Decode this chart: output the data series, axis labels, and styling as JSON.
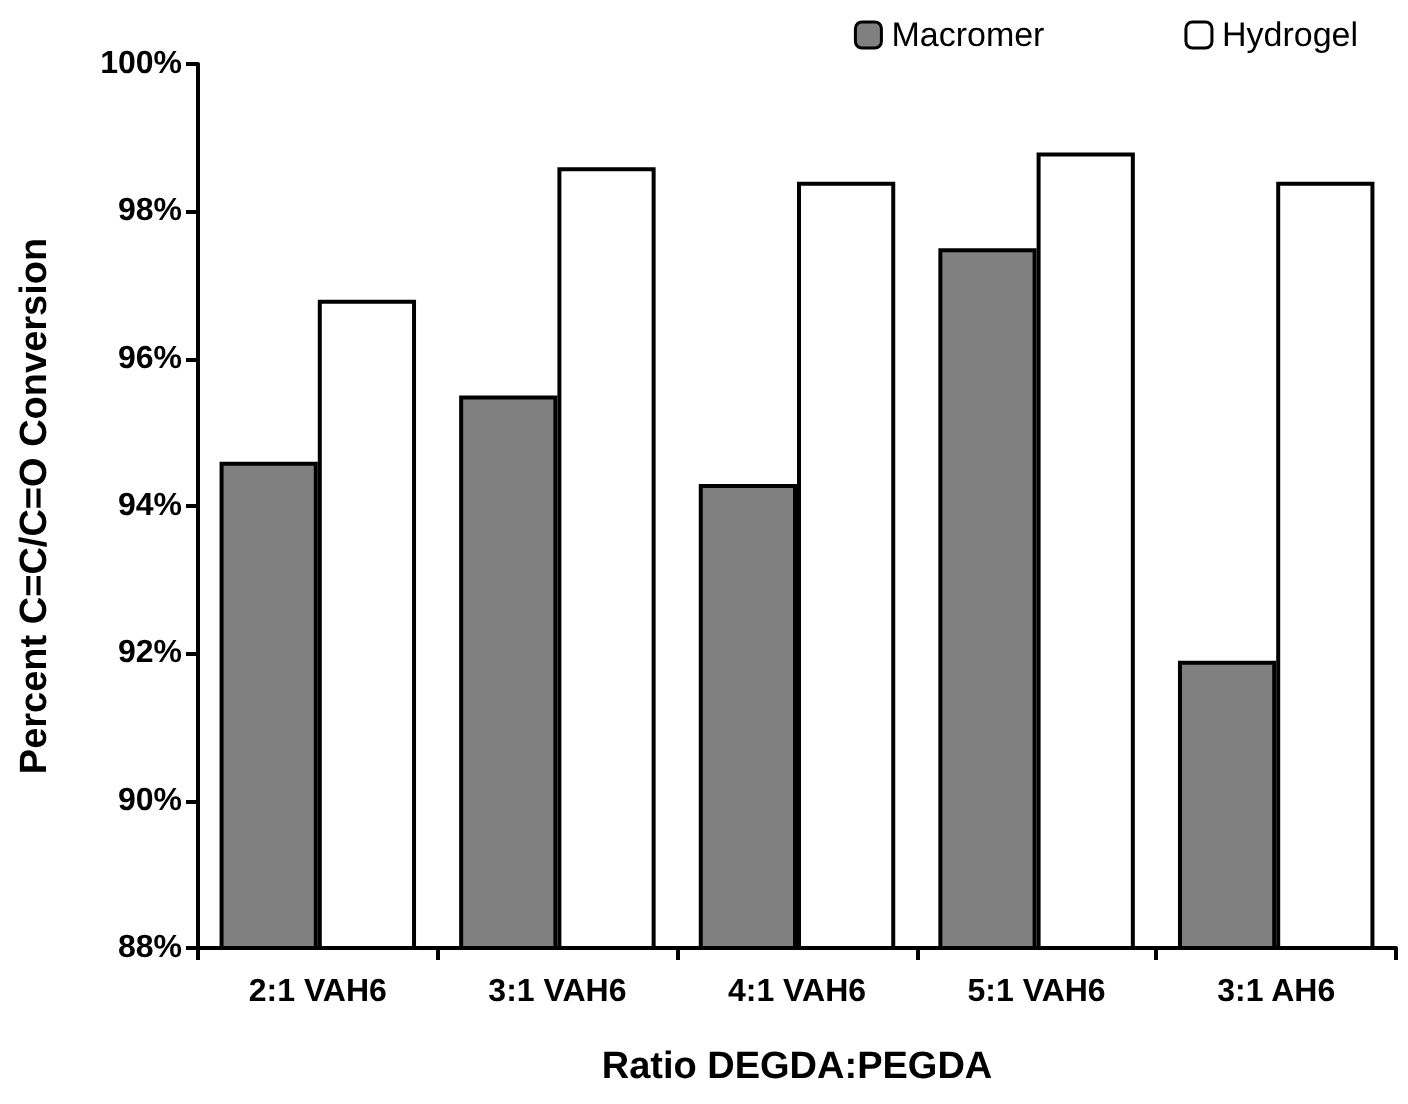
{
  "chart_data": {
    "type": "bar",
    "xlabel": "Ratio DEGDA:PEGDA",
    "ylabel": "Percent C=C/C=O Conversion",
    "categories": [
      "2:1 VAH6",
      "3:1 VAH6",
      "4:1 VAH6",
      "5:1 VAH6",
      "3:1 AH6"
    ],
    "series": [
      {
        "name": "Macromer",
        "color": "#808080",
        "values": [
          94.6,
          95.5,
          94.3,
          97.5,
          91.9
        ]
      },
      {
        "name": "Hydrogel",
        "color": "#ffffff",
        "values": [
          96.8,
          98.6,
          98.4,
          98.8,
          98.4
        ]
      }
    ],
    "ylim": [
      88,
      100
    ],
    "yticks": [
      {
        "value": 88,
        "label": "88%"
      },
      {
        "value": 90,
        "label": "90%"
      },
      {
        "value": 92,
        "label": "92%"
      },
      {
        "value": 94,
        "label": "94%"
      },
      {
        "value": 96,
        "label": "96%"
      },
      {
        "value": 98,
        "label": "98%"
      },
      {
        "value": 100,
        "label": "100%"
      }
    ],
    "grid": false,
    "legend": "top right"
  }
}
